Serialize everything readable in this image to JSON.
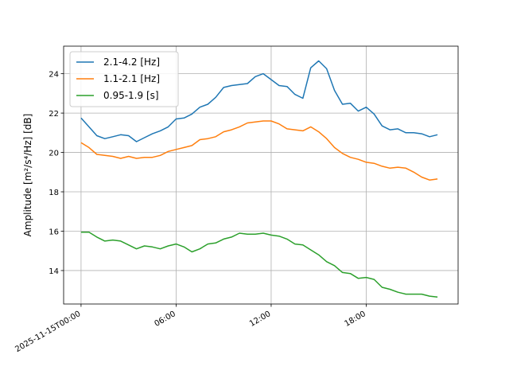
{
  "chart_data": {
    "type": "line",
    "ylabel_prefix": "Amplitude [",
    "ylabel_suffix": "] [dB]",
    "ylabel_units": "m²/s⁴/Hz",
    "ylim": [
      12.3,
      25.4
    ],
    "yticks": [
      14,
      16,
      18,
      20,
      22,
      24
    ],
    "ytick_labels": [
      "14",
      "16",
      "18",
      "20",
      "22",
      "24"
    ],
    "xlim": [
      -1.1,
      23.8
    ],
    "xticks": [
      0,
      6,
      12,
      18
    ],
    "xtick_labels": [
      "2025-11-15T00:00",
      "06:00",
      "12:00",
      "18:00"
    ],
    "grid": true,
    "legend_position": "upper-left",
    "x": [
      0,
      0.5,
      1,
      1.5,
      2,
      2.5,
      3,
      3.5,
      4,
      4.5,
      5,
      5.5,
      6,
      6.5,
      7,
      7.5,
      8,
      8.5,
      9,
      9.5,
      10,
      10.5,
      11,
      11.5,
      12,
      12.5,
      13,
      13.5,
      14,
      14.5,
      15,
      15.5,
      16,
      16.5,
      17,
      17.5,
      18,
      18.5,
      19,
      19.5,
      20,
      20.5,
      21,
      21.5,
      22,
      22.5
    ],
    "series": [
      {
        "name": "2.1-4.2 [Hz]",
        "color": "#1f77b4",
        "values": [
          21.75,
          21.3,
          20.85,
          20.7,
          20.8,
          20.9,
          20.85,
          20.55,
          20.75,
          20.95,
          21.1,
          21.3,
          21.7,
          21.75,
          21.95,
          22.3,
          22.45,
          22.8,
          23.3,
          23.4,
          23.45,
          23.5,
          23.85,
          24.0,
          23.7,
          23.4,
          23.35,
          22.95,
          22.75,
          24.3,
          24.65,
          24.25,
          23.15,
          22.45,
          22.5,
          22.1,
          22.3,
          21.95,
          21.35,
          21.15,
          21.2,
          21.0,
          21.0,
          20.95,
          20.8,
          20.9
        ]
      },
      {
        "name": "1.1-2.1 [Hz]",
        "color": "#ff7f0e",
        "values": [
          20.5,
          20.25,
          19.9,
          19.85,
          19.8,
          19.7,
          19.8,
          19.7,
          19.75,
          19.75,
          19.85,
          20.05,
          20.15,
          20.25,
          20.35,
          20.65,
          20.7,
          20.8,
          21.05,
          21.15,
          21.3,
          21.5,
          21.55,
          21.6,
          21.6,
          21.45,
          21.2,
          21.15,
          21.1,
          21.3,
          21.05,
          20.7,
          20.25,
          19.95,
          19.75,
          19.65,
          19.5,
          19.45,
          19.3,
          19.2,
          19.25,
          19.2,
          19.0,
          18.75,
          18.6,
          18.65
        ]
      },
      {
        "name": "0.95-1.9 [s]",
        "color": "#2ca02c",
        "values": [
          15.95,
          15.95,
          15.7,
          15.5,
          15.55,
          15.5,
          15.3,
          15.1,
          15.25,
          15.2,
          15.1,
          15.25,
          15.35,
          15.2,
          14.95,
          15.1,
          15.35,
          15.4,
          15.6,
          15.7,
          15.9,
          15.85,
          15.85,
          15.9,
          15.8,
          15.75,
          15.6,
          15.35,
          15.3,
          15.05,
          14.8,
          14.45,
          14.25,
          13.9,
          13.85,
          13.6,
          13.65,
          13.55,
          13.15,
          13.05,
          12.9,
          12.8,
          12.8,
          12.8,
          12.7,
          12.65
        ]
      }
    ]
  }
}
